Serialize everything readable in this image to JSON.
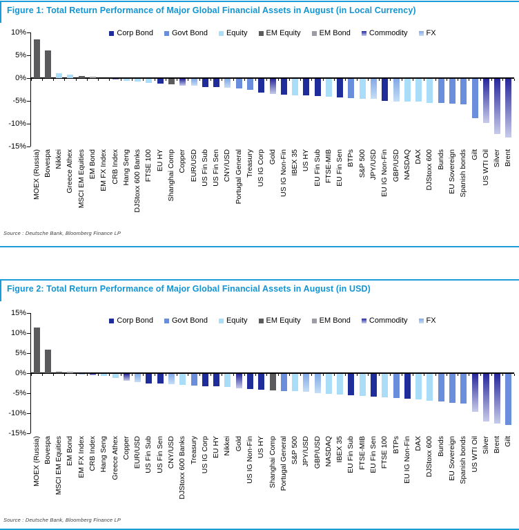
{
  "colors": {
    "accent": "#1b9cd8",
    "title": "#1295d2",
    "corp_bond": "#1f2d9b",
    "govt_bond": "#6b8edc",
    "equity": "#aadef8",
    "em_equity": "#5b5b5e",
    "em_bond": "#9c9ca2",
    "commodity_top": "#28289b",
    "commodity_bottom": "#c8cce9",
    "fx_top": "#82a9e6",
    "fx_bottom": "#c6def6",
    "axis": "#000000"
  },
  "chart_data": [
    {
      "type": "bar",
      "title": "Figure 1: Total Return Performance of Major Global Financial Assets in August (in Local Currency)",
      "source": "Source : Deutsche Bank, Bloomberg Finance LP",
      "xlabel": "",
      "ylabel": "",
      "ylim": [
        -15,
        10
      ],
      "grid": false,
      "legend_position": "top",
      "yticks": [
        {
          "label": "10%",
          "value": 10
        },
        {
          "label": "5%",
          "value": 5
        },
        {
          "label": "0%",
          "value": 0
        },
        {
          "label": "-5%",
          "value": -5
        },
        {
          "label": "-10%",
          "value": -10
        },
        {
          "label": "-15%",
          "value": -15
        }
      ],
      "legend": [
        {
          "label": "Corp Bond",
          "class": "corp_bond"
        },
        {
          "label": "Govt Bond",
          "class": "govt_bond"
        },
        {
          "label": "Equity",
          "class": "equity"
        },
        {
          "label": "EM Equity",
          "class": "em_equity"
        },
        {
          "label": "EM Bond",
          "class": "em_bond"
        },
        {
          "label": "Commodity",
          "class": "commodity"
        },
        {
          "label": "FX",
          "class": "fx"
        }
      ],
      "categories": [
        "MOEX (Russia)",
        "Bovespa",
        "Nikkei",
        "Greece Athex",
        "MSCI EM Equities",
        "EM Bond",
        "EM FX Index",
        "CRB Index",
        "Hang Seng",
        "DJStoxx 600 Banks",
        "FTSE 100",
        "EU HY",
        "Shanghai Comp",
        "Copper",
        "EUR/USD",
        "US Fin Sub",
        "US Fin Sen",
        "CNY/USD",
        "Portugal General",
        "Treasury",
        "US IG Corp",
        "Gold",
        "US IG Non-Fin",
        "IBEX 35",
        "US HY",
        "EU Fin Sub",
        "FTSE-MIB",
        "EU Fin Sen",
        "BTPs",
        "S&P 500",
        "JPY/USD",
        "EU IG Non-Fin",
        "GBP/USD",
        "NASDAQ",
        "DAX",
        "DJStoxx 600",
        "Bunds",
        "EU Sovereign",
        "Spanish bonds",
        "Gilt",
        "US WTI Oil",
        "Silver",
        "Brent"
      ],
      "values": [
        8.5,
        6.1,
        1.1,
        0.7,
        0.4,
        0.3,
        -0.1,
        -0.2,
        -0.5,
        -0.6,
        -0.9,
        -1.1,
        -1.2,
        -1.5,
        -1.6,
        -1.8,
        -1.9,
        -2.0,
        -2.2,
        -2.5,
        -3.0,
        -3.3,
        -3.5,
        -3.6,
        -3.7,
        -3.8,
        -4.0,
        -4.2,
        -4.3,
        -4.4,
        -4.5,
        -4.9,
        -5.0,
        -5.0,
        -5.1,
        -5.3,
        -5.4,
        -5.5,
        -5.7,
        -8.6,
        -9.8,
        -12.2,
        -12.9
      ],
      "series_class": [
        "em_equity",
        "em_equity",
        "equity",
        "equity",
        "em_equity",
        "em_bond",
        "fx",
        "commodity",
        "equity",
        "equity",
        "equity",
        "corp_bond",
        "em_equity",
        "commodity",
        "fx",
        "corp_bond",
        "corp_bond",
        "fx",
        "govt_bond",
        "govt_bond",
        "corp_bond",
        "commodity",
        "corp_bond",
        "equity",
        "corp_bond",
        "corp_bond",
        "equity",
        "corp_bond",
        "govt_bond",
        "equity",
        "fx",
        "corp_bond",
        "fx",
        "equity",
        "equity",
        "equity",
        "govt_bond",
        "govt_bond",
        "govt_bond",
        "govt_bond",
        "commodity",
        "commodity",
        "commodity"
      ]
    },
    {
      "type": "bar",
      "title": "Figure 2: Total Return Performance of Major Global Financial Assets in August (in USD)",
      "source": "Source : Deutsche Bank, Bloomberg Finance LP",
      "xlabel": "",
      "ylabel": "",
      "ylim": [
        -15,
        15
      ],
      "grid": false,
      "legend_position": "top",
      "yticks": [
        {
          "label": "15%",
          "value": 15
        },
        {
          "label": "10%",
          "value": 10
        },
        {
          "label": "5%",
          "value": 5
        },
        {
          "label": "0%",
          "value": 0
        },
        {
          "label": "-5%",
          "value": -5
        },
        {
          "label": "-10%",
          "value": -10
        },
        {
          "label": "-15%",
          "value": -15
        }
      ],
      "legend": [
        {
          "label": "Corp Bond",
          "class": "corp_bond"
        },
        {
          "label": "Govt Bond",
          "class": "govt_bond"
        },
        {
          "label": "Equity",
          "class": "equity"
        },
        {
          "label": "EM Equity",
          "class": "em_equity"
        },
        {
          "label": "EM Bond",
          "class": "em_bond"
        },
        {
          "label": "Commodity",
          "class": "commodity"
        },
        {
          "label": "FX",
          "class": "fx"
        }
      ],
      "categories": [
        "MOEX (Russia)",
        "Bovespa",
        "MSCI EM Equities",
        "EM Bond",
        "EM FX Index",
        "CRB Index",
        "Hang Seng",
        "Greece Athex",
        "Copper",
        "EUR/USD",
        "US Fin Sub",
        "US Fin Sen",
        "CNY/USD",
        "DJStoxx 600 Banks",
        "Treasury",
        "US IG Corp",
        "EU HY",
        "Nikkei",
        "Gold",
        "US IG Non-Fin",
        "US HY",
        "Shanghai Comp",
        "Portugal General",
        "S&P 500",
        "JPY/USD",
        "GBP/USD",
        "NASDAQ",
        "IBEX 35",
        "EU Fin Sub",
        "FTSE-MIB",
        "EU Fin Sen",
        "FTSE 100",
        "BTPs",
        "EU IG Non-Fin",
        "DAX",
        "DJStoxx 600",
        "Bunds",
        "EU Sovereign",
        "Spanish bonds",
        "US WTI Oil",
        "Silver",
        "Brent",
        "Gilt"
      ],
      "values": [
        11.3,
        5.9,
        0.4,
        0.3,
        -0.2,
        -0.4,
        -0.6,
        -1.0,
        -1.8,
        -2.1,
        -2.4,
        -2.5,
        -2.6,
        -2.8,
        -2.9,
        -3.1,
        -3.2,
        -3.4,
        -3.6,
        -3.8,
        -4.0,
        -4.1,
        -4.3,
        -4.4,
        -4.6,
        -4.8,
        -5.0,
        -5.2,
        -5.4,
        -5.6,
        -5.7,
        -5.9,
        -6.1,
        -6.3,
        -6.5,
        -6.7,
        -7.0,
        -7.2,
        -7.4,
        -9.5,
        -12.0,
        -12.5,
        -12.8
      ],
      "series_class": [
        "em_equity",
        "em_equity",
        "em_equity",
        "em_bond",
        "fx",
        "commodity",
        "equity",
        "equity",
        "commodity",
        "fx",
        "corp_bond",
        "corp_bond",
        "fx",
        "equity",
        "govt_bond",
        "corp_bond",
        "corp_bond",
        "equity",
        "commodity",
        "corp_bond",
        "corp_bond",
        "em_equity",
        "govt_bond",
        "equity",
        "fx",
        "fx",
        "equity",
        "equity",
        "corp_bond",
        "equity",
        "corp_bond",
        "equity",
        "govt_bond",
        "corp_bond",
        "equity",
        "equity",
        "govt_bond",
        "govt_bond",
        "govt_bond",
        "commodity",
        "commodity",
        "commodity",
        "govt_bond"
      ]
    }
  ]
}
